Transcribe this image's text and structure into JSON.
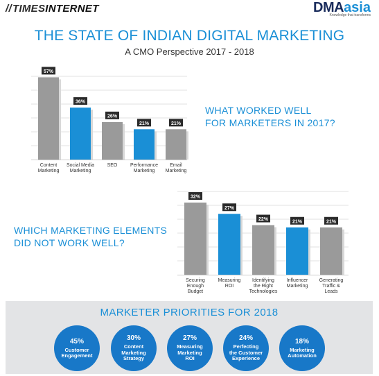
{
  "header": {
    "times_slash": "//",
    "times_a": "TIMES",
    "times_b": "INTERNET",
    "dma_a": "DMA",
    "dma_b": "asia",
    "dma_tag": "Knowledge that transforms"
  },
  "title": "THE STATE OF INDIAN DIGITAL MARKETING",
  "subtitle": "A CMO Perspective 2017 - 2018",
  "questions": {
    "q1_line1": "WHAT WORKED WELL",
    "q1_line2": "FOR MARKETERS IN 2017?",
    "q2_line1": "WHICH MARKETING ELEMENTS",
    "q2_line2": "DID NOT WORK WELL?"
  },
  "colors": {
    "gray": "#9a9a9a",
    "blue": "#1a8fd6",
    "label_bg": "#2b2b2b",
    "circle": "#1878c8"
  },
  "chart_data": [
    {
      "type": "bar",
      "title": "WHAT WORKED WELL FOR MARKETERS IN 2017?",
      "categories": [
        [
          "Content",
          "Marketing"
        ],
        [
          "Social Media",
          "Marketing"
        ],
        [
          "SEO"
        ],
        [
          "Performance",
          "Marketing"
        ],
        [
          "Email",
          "Marketing"
        ]
      ],
      "values": [
        57,
        36,
        26,
        21,
        21
      ],
      "labels": [
        "57%",
        "36%",
        "26%",
        "21%",
        "21%"
      ],
      "colors": [
        "gray",
        "blue",
        "gray",
        "blue",
        "gray"
      ],
      "ylim": [
        0,
        60
      ]
    },
    {
      "type": "bar",
      "title": "WHICH MARKETING ELEMENTS DID NOT WORK WELL?",
      "categories": [
        [
          "Securing",
          "Enough",
          "Budget"
        ],
        [
          "Measuring",
          "ROI"
        ],
        [
          "Identifying",
          "the Right",
          "Technologies"
        ],
        [
          "Influencer",
          "Marketing"
        ],
        [
          "Generating",
          "Traffic &",
          "Leads"
        ]
      ],
      "values": [
        32,
        27,
        22,
        21,
        21
      ],
      "labels": [
        "32%",
        "27%",
        "22%",
        "21%",
        "21%"
      ],
      "colors": [
        "gray",
        "blue",
        "gray",
        "blue",
        "gray"
      ],
      "ylim": [
        0,
        34
      ]
    }
  ],
  "priorities": {
    "title": "MARKETER PRIORITIES FOR 2018",
    "items": [
      {
        "pct": "45%",
        "label": [
          "Customer",
          "Engagement"
        ]
      },
      {
        "pct": "30%",
        "label": [
          "Content",
          "Marketing",
          "Strategy"
        ]
      },
      {
        "pct": "27%",
        "label": [
          "Measuring",
          "Marketing",
          "ROI"
        ]
      },
      {
        "pct": "24%",
        "label": [
          "Perfecting",
          "the Customer",
          "Experience"
        ]
      },
      {
        "pct": "18%",
        "label": [
          "Marketing",
          "Automation"
        ]
      }
    ]
  }
}
